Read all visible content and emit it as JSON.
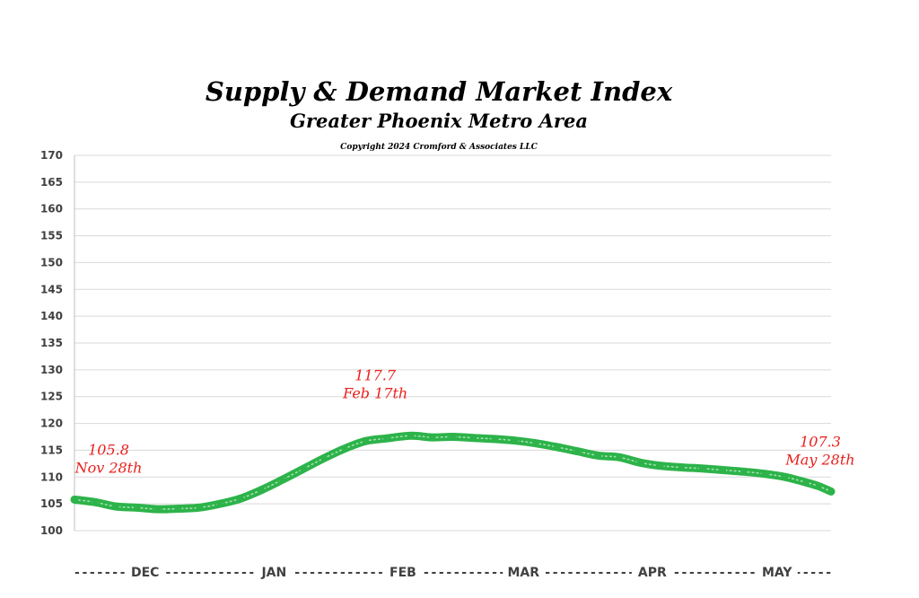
{
  "chart_data": {
    "type": "line",
    "title": "Supply & Demand Market Index",
    "subtitle": "Greater Phoenix Metro Area",
    "copyright": "Copyright 2024 Cromford & Associates LLC",
    "ylim": [
      100,
      170
    ],
    "yticks": [
      100,
      105,
      110,
      115,
      120,
      125,
      130,
      135,
      140,
      145,
      150,
      155,
      160,
      165,
      170
    ],
    "grid": true,
    "line_color": "#2db34a",
    "annotation_color": "#e8211d",
    "x_axis": {
      "start": "2023-11-28",
      "end": "2024-05-28",
      "month_labels": [
        {
          "label": "DEC",
          "date": "2023-12-15"
        },
        {
          "label": "JAN",
          "date": "2024-01-15"
        },
        {
          "label": "FEB",
          "date": "2024-02-15"
        },
        {
          "label": "MAR",
          "date": "2024-03-15"
        },
        {
          "label": "APR",
          "date": "2024-04-15"
        },
        {
          "label": "MAY",
          "date": "2024-05-15"
        }
      ],
      "dash_text": "- - - - - - - - - - - - - - - - - - - - - - - - - - - - - - - - - - - - - - - - - - - - - - - - - - - - - - - - - - - - - - - - - - - - - - - - - - - - - - - - - - - - - - - - - - - - - - - - - - - -"
    },
    "series": [
      {
        "points": [
          {
            "x": "2023-11-28",
            "y": 105.8
          },
          {
            "x": "2023-12-03",
            "y": 105.3
          },
          {
            "x": "2023-12-08",
            "y": 104.5
          },
          {
            "x": "2023-12-13",
            "y": 104.3
          },
          {
            "x": "2023-12-18",
            "y": 104.0
          },
          {
            "x": "2023-12-23",
            "y": 104.1
          },
          {
            "x": "2023-12-28",
            "y": 104.3
          },
          {
            "x": "2024-01-02",
            "y": 105.0
          },
          {
            "x": "2024-01-07",
            "y": 106.0
          },
          {
            "x": "2024-01-12",
            "y": 107.6
          },
          {
            "x": "2024-01-17",
            "y": 109.5
          },
          {
            "x": "2024-01-22",
            "y": 111.5
          },
          {
            "x": "2024-01-27",
            "y": 113.5
          },
          {
            "x": "2024-02-01",
            "y": 115.3
          },
          {
            "x": "2024-02-06",
            "y": 116.7
          },
          {
            "x": "2024-02-11",
            "y": 117.2
          },
          {
            "x": "2024-02-17",
            "y": 117.7
          },
          {
            "x": "2024-02-22",
            "y": 117.4
          },
          {
            "x": "2024-02-27",
            "y": 117.5
          },
          {
            "x": "2024-03-03",
            "y": 117.3
          },
          {
            "x": "2024-03-08",
            "y": 117.1
          },
          {
            "x": "2024-03-13",
            "y": 116.8
          },
          {
            "x": "2024-03-18",
            "y": 116.3
          },
          {
            "x": "2024-03-23",
            "y": 115.6
          },
          {
            "x": "2024-03-28",
            "y": 114.8
          },
          {
            "x": "2024-04-02",
            "y": 114.0
          },
          {
            "x": "2024-04-07",
            "y": 113.7
          },
          {
            "x": "2024-04-12",
            "y": 112.7
          },
          {
            "x": "2024-04-17",
            "y": 112.1
          },
          {
            "x": "2024-04-22",
            "y": 111.8
          },
          {
            "x": "2024-04-27",
            "y": 111.6
          },
          {
            "x": "2024-05-02",
            "y": 111.3
          },
          {
            "x": "2024-05-07",
            "y": 111.0
          },
          {
            "x": "2024-05-12",
            "y": 110.6
          },
          {
            "x": "2024-05-17",
            "y": 110.0
          },
          {
            "x": "2024-05-22",
            "y": 109.0
          },
          {
            "x": "2024-05-25",
            "y": 108.3
          },
          {
            "x": "2024-05-28",
            "y": 107.3
          }
        ]
      }
    ],
    "annotations": [
      {
        "value": "105.8",
        "date_label": "Nov 28th",
        "x": "2023-11-28",
        "y": 105.8
      },
      {
        "value": "117.7",
        "date_label": "Feb 17th",
        "x": "2024-02-17",
        "y": 117.7
      },
      {
        "value": "107.3",
        "date_label": "May 28th",
        "x": "2024-05-28",
        "y": 107.3
      }
    ]
  }
}
